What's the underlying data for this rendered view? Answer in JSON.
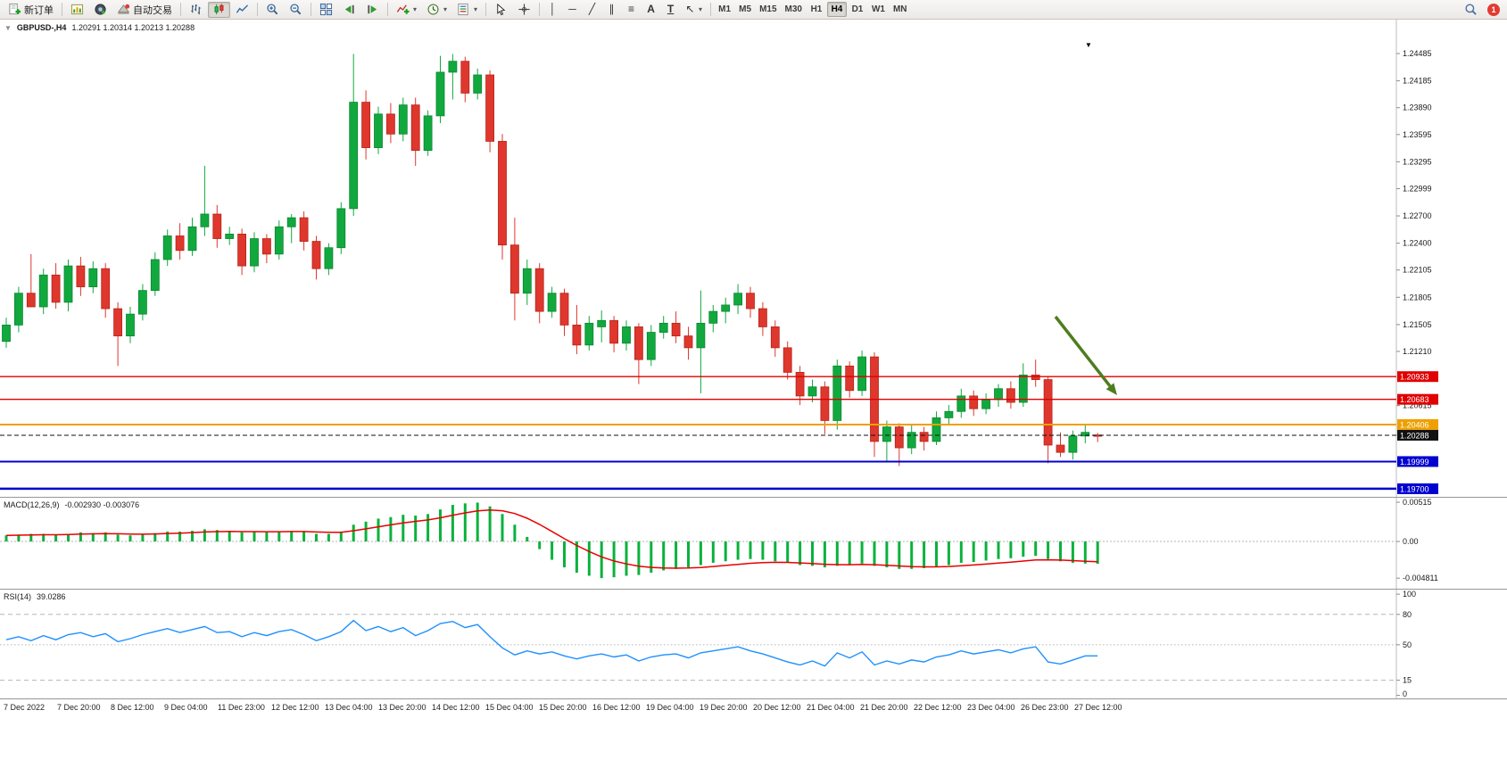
{
  "toolbar": {
    "new_order": "新订单",
    "autotrading": "自动交易",
    "timeframes": [
      "M1",
      "M5",
      "M15",
      "M30",
      "H1",
      "H4",
      "D1",
      "W1",
      "MN"
    ],
    "active_timeframe": "H4",
    "notification_count": "1",
    "glyphs": {
      "vertical_line": "│",
      "horizontal_line": "─",
      "trendline": "╱",
      "channel": "∥",
      "fibonacci": "≡",
      "text_tool": "A",
      "label_tool": "T",
      "arrows_tool": "↖",
      "caret": "▾"
    }
  },
  "chart_header": {
    "collapse_arrow": "▼",
    "shift_marker": "▼"
  },
  "chart_data": [
    {
      "type": "candlestick",
      "title": "GBPUSD-,H4",
      "symbol": "GBPUSD-",
      "timeframe": "H4",
      "ohlc_text": "1.20291 1.20314 1.20213 1.20288",
      "current_open": 1.20291,
      "current_high": 1.20314,
      "current_low": 1.20213,
      "current_close": 1.20288,
      "colors": {
        "up": "#11a93e",
        "down": "#df372d",
        "up_border": "#0c8530",
        "down_border": "#b42419"
      },
      "y_range": {
        "min": 1.19611,
        "max": 1.24858
      },
      "y_axis_ticks": [
        "1.24485",
        "1.24185",
        "1.23890",
        "1.23595",
        "1.23295",
        "1.22999",
        "1.22700",
        "1.22400",
        "1.22105",
        "1.21805",
        "1.21505",
        "1.21210",
        "1.20615"
      ],
      "levels": [
        {
          "price": 1.20933,
          "label": "1.20933",
          "color": "#e00000",
          "style": "solid",
          "width": 1.3
        },
        {
          "price": 1.20683,
          "label": "1.20683",
          "color": "#e00000",
          "style": "solid",
          "width": 1.3
        },
        {
          "price": 1.20406,
          "label": "1.20406",
          "color": "#efa000",
          "style": "solid",
          "width": 2
        },
        {
          "price": 1.20288,
          "label": "1.20288",
          "color": "#111111",
          "style": "dash",
          "width": 1
        },
        {
          "price": 1.19999,
          "label": "1.19999",
          "color": "#0000cf",
          "style": "solid",
          "width": 2
        },
        {
          "price": 1.197,
          "label": "1.19700",
          "color": "#0000cf",
          "style": "solid",
          "width": 2.5
        }
      ],
      "annotation": {
        "type": "arrow",
        "from": {
          "x": 1183,
          "y": 333
        },
        "to": {
          "x": 1252,
          "y": 421
        },
        "color": "#4e7d1e"
      },
      "x_labels": [
        "7 Dec 2022",
        "7 Dec 20:00",
        "8 Dec 12:00",
        "9 Dec 04:00",
        "11 Dec 23:00",
        "12 Dec 12:00",
        "13 Dec 04:00",
        "13 Dec 20:00",
        "14 Dec 12:00",
        "15 Dec 04:00",
        "15 Dec 20:00",
        "16 Dec 12:00",
        "19 Dec 04:00",
        "19 Dec 20:00",
        "20 Dec 12:00",
        "21 Dec 04:00",
        "21 Dec 20:00",
        "22 Dec 12:00",
        "23 Dec 04:00",
        "26 Dec 23:00",
        "27 Dec 12:00"
      ],
      "candles": [
        [
          1.2132,
          1.2158,
          1.2125,
          1.215
        ],
        [
          1.215,
          1.2192,
          1.2142,
          1.2185
        ],
        [
          1.2185,
          1.2228,
          1.2178,
          1.217
        ],
        [
          1.217,
          1.2212,
          1.2162,
          1.2205
        ],
        [
          1.2205,
          1.2218,
          1.2168,
          1.2175
        ],
        [
          1.2175,
          1.2222,
          1.2165,
          1.2215
        ],
        [
          1.2215,
          1.2225,
          1.2182,
          1.2192
        ],
        [
          1.2192,
          1.222,
          1.2185,
          1.2212
        ],
        [
          1.2212,
          1.2218,
          1.2158,
          1.2168
        ],
        [
          1.2168,
          1.2175,
          1.2105,
          1.2138
        ],
        [
          1.2138,
          1.217,
          1.213,
          1.2162
        ],
        [
          1.2162,
          1.2195,
          1.2155,
          1.2188
        ],
        [
          1.2188,
          1.223,
          1.2182,
          1.2222
        ],
        [
          1.2222,
          1.2255,
          1.2215,
          1.2248
        ],
        [
          1.2248,
          1.2262,
          1.2222,
          1.2232
        ],
        [
          1.2232,
          1.2268,
          1.2226,
          1.2258
        ],
        [
          1.2258,
          1.2325,
          1.2248,
          1.2272
        ],
        [
          1.2272,
          1.2282,
          1.2235,
          1.2245
        ],
        [
          1.2245,
          1.2258,
          1.2238,
          1.225
        ],
        [
          1.225,
          1.2256,
          1.2205,
          1.2215
        ],
        [
          1.2215,
          1.2252,
          1.2208,
          1.2245
        ],
        [
          1.2245,
          1.225,
          1.2218,
          1.2228
        ],
        [
          1.2228,
          1.2265,
          1.2222,
          1.2258
        ],
        [
          1.2258,
          1.2272,
          1.224,
          1.2268
        ],
        [
          1.2268,
          1.2275,
          1.2232,
          1.2242
        ],
        [
          1.2242,
          1.2248,
          1.22,
          1.2212
        ],
        [
          1.2212,
          1.224,
          1.2205,
          1.2235
        ],
        [
          1.2235,
          1.2285,
          1.2228,
          1.2278
        ],
        [
          1.2278,
          1.2448,
          1.227,
          1.2395
        ],
        [
          1.2395,
          1.2408,
          1.2332,
          1.2345
        ],
        [
          1.2345,
          1.239,
          1.2338,
          1.2382
        ],
        [
          1.2382,
          1.2394,
          1.235,
          1.236
        ],
        [
          1.236,
          1.24,
          1.2352,
          1.2392
        ],
        [
          1.2392,
          1.24,
          1.2325,
          1.2342
        ],
        [
          1.2342,
          1.2386,
          1.2336,
          1.238
        ],
        [
          1.238,
          1.2446,
          1.2372,
          1.2428
        ],
        [
          1.2428,
          1.2448,
          1.2398,
          1.244
        ],
        [
          1.244,
          1.2445,
          1.2395,
          1.2405
        ],
        [
          1.2405,
          1.2432,
          1.2398,
          1.2425
        ],
        [
          1.2425,
          1.243,
          1.234,
          1.2352
        ],
        [
          1.2352,
          1.236,
          1.2222,
          1.2238
        ],
        [
          1.2238,
          1.2268,
          1.2155,
          1.2185
        ],
        [
          1.2185,
          1.2222,
          1.2172,
          1.2212
        ],
        [
          1.2212,
          1.2218,
          1.2152,
          1.2165
        ],
        [
          1.2165,
          1.2192,
          1.2158,
          1.2185
        ],
        [
          1.2185,
          1.219,
          1.2138,
          1.215
        ],
        [
          1.215,
          1.2172,
          1.2118,
          1.2128
        ],
        [
          1.2128,
          1.216,
          1.2122,
          1.2152
        ],
        [
          1.2148,
          1.2166,
          1.2131,
          1.2155
        ],
        [
          1.2155,
          1.216,
          1.212,
          1.213
        ],
        [
          1.213,
          1.2155,
          1.2122,
          1.2148
        ],
        [
          1.2148,
          1.2152,
          1.2085,
          1.2112
        ],
        [
          1.2112,
          1.215,
          1.2105,
          1.2142
        ],
        [
          1.2142,
          1.216,
          1.2135,
          1.2152
        ],
        [
          1.2152,
          1.2165,
          1.213,
          1.2138
        ],
        [
          1.2138,
          1.2148,
          1.2112,
          1.2125
        ],
        [
          1.2125,
          1.2188,
          1.2075,
          1.2152
        ],
        [
          1.2152,
          1.2172,
          1.2142,
          1.2165
        ],
        [
          1.2165,
          1.218,
          1.2152,
          1.2172
        ],
        [
          1.2172,
          1.2195,
          1.2162,
          1.2185
        ],
        [
          1.2185,
          1.2192,
          1.2158,
          1.2168
        ],
        [
          1.2168,
          1.2175,
          1.2138,
          1.2148
        ],
        [
          1.2148,
          1.2155,
          1.2115,
          1.2125
        ],
        [
          1.2125,
          1.2132,
          1.209,
          1.2098
        ],
        [
          1.2098,
          1.2105,
          1.2062,
          1.2072
        ],
        [
          1.2072,
          1.209,
          1.2065,
          1.2082
        ],
        [
          1.2082,
          1.2088,
          1.203,
          1.2045
        ],
        [
          1.2045,
          1.2112,
          1.2035,
          1.2105
        ],
        [
          1.2105,
          1.211,
          1.207,
          1.2078
        ],
        [
          1.2078,
          1.2122,
          1.2072,
          1.2115
        ],
        [
          1.2115,
          1.212,
          1.2005,
          1.2022
        ],
        [
          1.2022,
          1.2045,
          1.1999,
          1.2038
        ],
        [
          1.2038,
          1.2042,
          1.1995,
          1.2015
        ],
        [
          1.2015,
          1.204,
          1.2008,
          1.2032
        ],
        [
          1.2032,
          1.2038,
          1.2012,
          1.2022
        ],
        [
          1.2022,
          1.2055,
          1.2018,
          1.2048
        ],
        [
          1.2048,
          1.2062,
          1.204,
          1.2055
        ],
        [
          1.2055,
          1.208,
          1.2048,
          1.2072
        ],
        [
          1.2072,
          1.2078,
          1.205,
          1.2058
        ],
        [
          1.2058,
          1.2075,
          1.2052,
          1.2068
        ],
        [
          1.2068,
          1.2085,
          1.206,
          1.208
        ],
        [
          1.208,
          1.2088,
          1.2058,
          1.2065
        ],
        [
          1.2065,
          1.2108,
          1.206,
          1.2095
        ],
        [
          1.2095,
          1.2112,
          1.2082,
          1.209
        ],
        [
          1.209,
          1.2094,
          1.1998,
          1.2018
        ],
        [
          1.2018,
          1.2032,
          1.2005,
          1.201
        ],
        [
          1.201,
          1.2034,
          1.2002,
          1.2028
        ],
        [
          1.2028,
          1.204,
          1.202,
          1.2032
        ],
        [
          1.20291,
          1.20314,
          1.20213,
          1.20288
        ]
      ]
    },
    {
      "type": "bar",
      "title": "MACD(12,26,9)",
      "values_text": "-0.002930 -0.003076",
      "macd_last": -0.00293,
      "signal_last": -0.003076,
      "colors": {
        "histogram": "#09b23c",
        "signal": "#e80000"
      },
      "y_range": {
        "min": -0.0062,
        "max": 0.00574
      },
      "y_ticks": [
        {
          "v": 0.00515,
          "label": "0.00515"
        },
        {
          "v": 0,
          "label": "0.00"
        },
        {
          "v": -0.004811,
          "label": "-0.004811"
        }
      ],
      "values": [
        0.0008,
        0.0009,
        0.001,
        0.001,
        0.0009,
        0.001,
        0.0012,
        0.0011,
        0.0012,
        0.0009,
        0.0008,
        0.0009,
        0.0011,
        0.0013,
        0.0013,
        0.0014,
        0.0016,
        0.0015,
        0.0014,
        0.0012,
        0.0013,
        0.0012,
        0.0013,
        0.0014,
        0.0013,
        0.001,
        0.001,
        0.0013,
        0.0022,
        0.0026,
        0.003,
        0.0032,
        0.0035,
        0.0034,
        0.0036,
        0.0042,
        0.0048,
        0.005,
        0.0051,
        0.0046,
        0.0036,
        0.0022,
        0.0006,
        -0.001,
        -0.0024,
        -0.0034,
        -0.0041,
        -0.0045,
        -0.004811,
        -0.0047,
        -0.0045,
        -0.0044,
        -0.0041,
        -0.0038,
        -0.0036,
        -0.0034,
        -0.0031,
        -0.0028,
        -0.0026,
        -0.0024,
        -0.0023,
        -0.0024,
        -0.0026,
        -0.0028,
        -0.0031,
        -0.0032,
        -0.0034,
        -0.0032,
        -0.0031,
        -0.0029,
        -0.0032,
        -0.0034,
        -0.0036,
        -0.0036,
        -0.0035,
        -0.0033,
        -0.0031,
        -0.0028,
        -0.0027,
        -0.0025,
        -0.0023,
        -0.0022,
        -0.002,
        -0.0019,
        -0.0023,
        -0.0026,
        -0.0028,
        -0.0029,
        -0.00293
      ]
    },
    {
      "type": "line",
      "title": "RSI(14)",
      "value_text": "39.0286",
      "rsi_last": 39.0286,
      "colors": {
        "line": "#1e90ff"
      },
      "y_range": {
        "min": -3,
        "max": 104.5
      },
      "y_ticks": [
        {
          "v": 100,
          "label": "100"
        },
        {
          "v": 80,
          "label": "80"
        },
        {
          "v": 50,
          "label": "50"
        },
        {
          "v": 15,
          "label": "15"
        },
        {
          "v": 0,
          "label": "0"
        }
      ],
      "level_lines": [
        {
          "v": 80,
          "style": "dash"
        },
        {
          "v": 50,
          "style": "dot"
        },
        {
          "v": 15,
          "style": "dash"
        }
      ],
      "values": [
        55,
        58,
        54,
        59,
        55,
        60,
        62,
        58,
        61,
        53,
        56,
        60,
        63,
        66,
        62,
        65,
        68,
        62,
        63,
        58,
        62,
        59,
        63,
        65,
        60,
        54,
        58,
        63,
        74,
        64,
        68,
        63,
        67,
        59,
        64,
        71,
        73,
        67,
        70,
        58,
        47,
        40,
        44,
        41,
        43,
        39,
        36,
        39,
        41,
        38,
        40,
        34,
        38,
        40,
        41,
        37,
        42,
        44,
        46,
        48,
        44,
        41,
        37,
        33,
        30,
        34,
        29,
        42,
        37,
        43,
        30,
        34,
        31,
        35,
        33,
        38,
        40,
        44,
        41,
        43,
        45,
        42,
        46,
        48,
        33,
        31,
        35,
        39,
        39.03
      ]
    }
  ]
}
